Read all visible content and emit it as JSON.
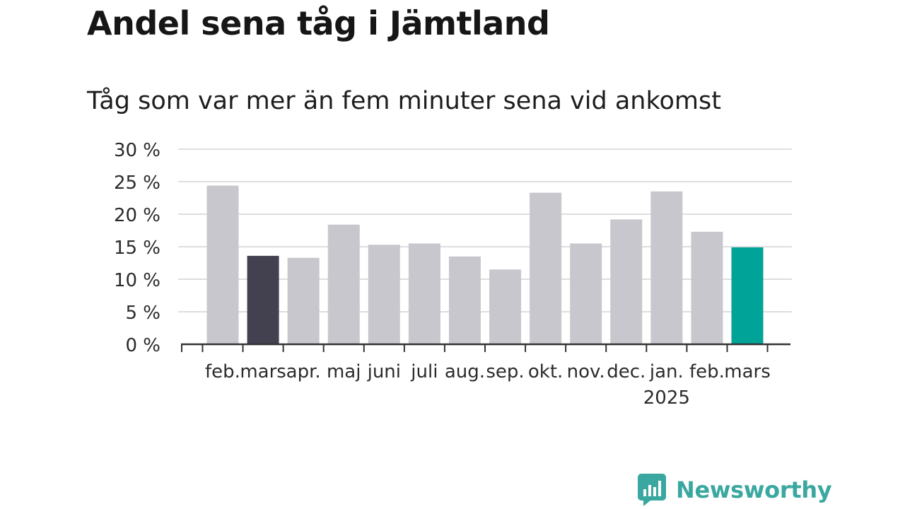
{
  "brand": {
    "name": "Newsworthy",
    "logo_icon": "bar-chart-speech-bubble-icon",
    "color": "#3aa8a0"
  },
  "colors": {
    "bar_default": "#c8c7cd",
    "bar_highlight_previous": "#434150",
    "bar_highlight_current": "#00a398",
    "grid": "#dedede",
    "axis": "#333333"
  },
  "chart_data": {
    "type": "bar",
    "title": "Andel sena tåg i Jämtland",
    "subtitle": "Tåg som var mer än fem minuter sena vid ankomst",
    "xlabel": "",
    "ylabel": "",
    "ylim": [
      0,
      30
    ],
    "yticks": [
      0,
      5,
      10,
      15,
      20,
      25,
      30
    ],
    "ytick_labels": [
      "0 %",
      "5 %",
      "10 %",
      "15 %",
      "20 %",
      "25 %",
      "30 %"
    ],
    "grid": true,
    "legend": "none",
    "categories": [
      "feb.",
      "mars",
      "apr.",
      "maj",
      "juni",
      "juli",
      "aug.",
      "sep.",
      "okt.",
      "nov.",
      "dec.",
      "jan.",
      "feb.",
      "mars"
    ],
    "year_label": {
      "category_index": 11,
      "text": "2025"
    },
    "values": [
      24.4,
      13.6,
      13.3,
      18.4,
      15.3,
      15.5,
      13.5,
      11.5,
      23.3,
      15.5,
      19.2,
      23.5,
      17.3,
      14.9
    ],
    "highlight": {
      "1": "previous",
      "13": "current"
    }
  }
}
